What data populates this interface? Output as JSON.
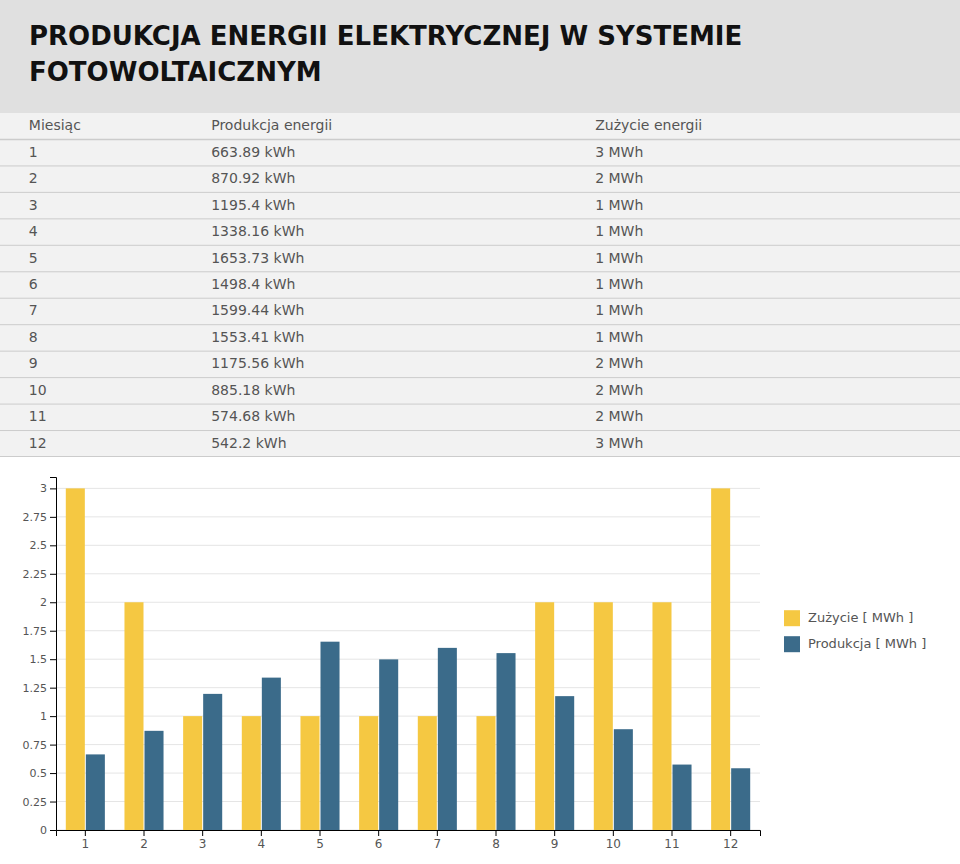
{
  "chart_data": {
    "type": "bar",
    "title": "PRODUKCJA ENERGII ELEKTRYCZNEJ W SYSTEMIE FOTOWOLTAICZNYM",
    "categories": [
      1,
      2,
      3,
      4,
      5,
      6,
      7,
      8,
      9,
      10,
      11,
      12
    ],
    "series": [
      {
        "name": "Zużycie [ MWh ]",
        "color": "#F5C842",
        "values": [
          3,
          2,
          1,
          1,
          1,
          1,
          1,
          1,
          2,
          2,
          2,
          3
        ]
      },
      {
        "name": "Produkcja [ MWh ]",
        "color": "#3B6B8A",
        "values": [
          0.66389,
          0.87092,
          1.1954,
          1.33816,
          1.65373,
          1.4984,
          1.59944,
          1.55341,
          1.17556,
          0.88518,
          0.57468,
          0.5422
        ]
      }
    ],
    "ylim": [
      0,
      3.1
    ],
    "yticks": [
      0,
      0.25,
      0.5,
      0.75,
      1,
      1.25,
      1.5,
      1.75,
      2,
      2.25,
      2.5,
      2.75,
      3
    ],
    "grid": true,
    "legend": "right",
    "table": {
      "header": [
        "Miesiąc",
        "Produkcja energii",
        "Zużycie energii"
      ],
      "rows": [
        [
          1,
          "663.89 kWh",
          "3 MWh"
        ],
        [
          2,
          "870.92 kWh",
          "2 MWh"
        ],
        [
          3,
          "1195.4 kWh",
          "1 MWh"
        ],
        [
          4,
          "1338.16 kWh",
          "1 MWh"
        ],
        [
          5,
          "1653.73 kWh",
          "1 MWh"
        ],
        [
          6,
          "1498.4 kWh",
          "1 MWh"
        ],
        [
          7,
          "1599.44 kWh",
          "1 MWh"
        ],
        [
          8,
          "1553.41 kWh",
          "1 MWh"
        ],
        [
          9,
          "1175.56 kWh",
          "2 MWh"
        ],
        [
          10,
          "885.18 kWh",
          "2 MWh"
        ],
        [
          11,
          "574.68 kWh",
          "2 MWh"
        ],
        [
          12,
          "542.2 kWh",
          "3 MWh"
        ]
      ]
    }
  }
}
